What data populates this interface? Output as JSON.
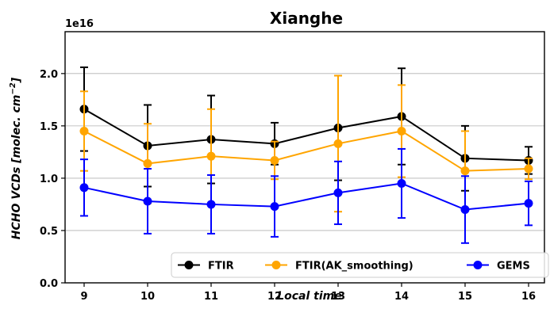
{
  "chart_data": {
    "type": "line",
    "title": "Xianghe",
    "xlabel": "Local time",
    "ylabel_main": "HCHO VCDs [molec. cm",
    "ylabel_sup": "−2",
    "ylabel_end": "]",
    "y_offset_label": "1e16",
    "x": [
      9,
      10,
      11,
      12,
      13,
      14,
      15,
      16
    ],
    "x_tick_labels": [
      "9",
      "10",
      "11",
      "12",
      "13",
      "14",
      "15",
      "16"
    ],
    "xlim": [
      8.7,
      16.25
    ],
    "ylim": [
      0.0,
      2.4
    ],
    "y_ticks": [
      0.0,
      0.5,
      1.0,
      1.5,
      2.0
    ],
    "y_tick_labels": [
      "0.0",
      "0.5",
      "1.0",
      "1.5",
      "2.0"
    ],
    "grid": "horizontal",
    "legend_position": "bottom-right",
    "series": [
      {
        "name": "FTIR",
        "color": "#000000",
        "values": [
          1.66,
          1.31,
          1.37,
          1.33,
          1.48,
          1.59,
          1.19,
          1.17
        ],
        "errors": [
          0.4,
          0.39,
          0.42,
          0.2,
          0.5,
          0.46,
          0.31,
          0.13
        ]
      },
      {
        "name": "FTIR(AK_smoothing)",
        "color": "#ffa500",
        "values": [
          1.45,
          1.14,
          1.21,
          1.17,
          1.33,
          1.45,
          1.07,
          1.09
        ],
        "errors": [
          0.38,
          0.38,
          0.45,
          0.18,
          0.65,
          0.44,
          0.38,
          0.1
        ]
      },
      {
        "name": "GEMS",
        "color": "#0000ff",
        "values": [
          0.91,
          0.78,
          0.75,
          0.73,
          0.86,
          0.95,
          0.7,
          0.76
        ],
        "errors": [
          0.27,
          0.31,
          0.28,
          0.29,
          0.3,
          0.33,
          0.32,
          0.21
        ]
      }
    ]
  }
}
